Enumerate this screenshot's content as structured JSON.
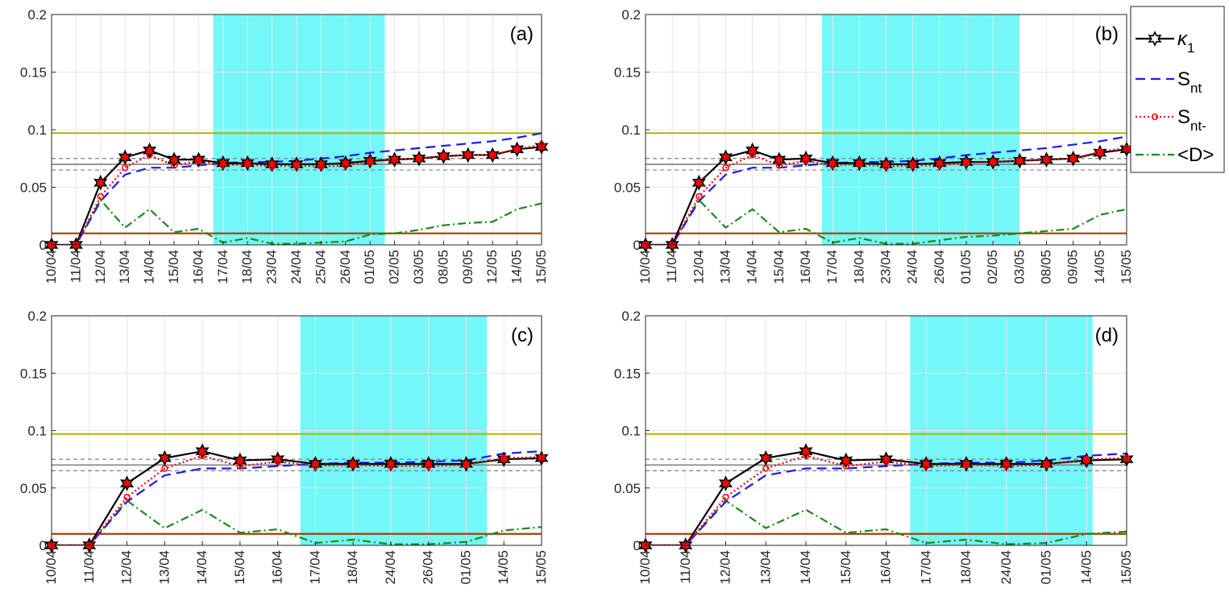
{
  "colors": {
    "kappa": "#000000",
    "kappa_marker_fill": "#ff0000",
    "S_nt": "#1a1aff",
    "S_nt_minus": "#ff0000",
    "D": "#1a8a1a",
    "shade": "#00f0f0",
    "yellow_line": "#b4b400",
    "brown_line": "#a0410a",
    "gray_band": "#7f7f7f",
    "grid": "#e6e6e6",
    "axis": "#262626"
  },
  "legend": {
    "entries": [
      {
        "key": "kappa",
        "symbol": "κ",
        "sub": "1"
      },
      {
        "key": "S_nt",
        "symbol": "S",
        "sub": "nt"
      },
      {
        "key": "S_nt_minus",
        "symbol": "S",
        "sub": "nt-"
      },
      {
        "key": "D",
        "symbol": "<D>",
        "sub": ""
      }
    ]
  },
  "chart_data": [
    {
      "type": "line",
      "panel": "(a)",
      "categories": [
        "10/04",
        "11/04",
        "12/04",
        "13/04",
        "14/04",
        "15/04",
        "16/04",
        "17/04",
        "18/04",
        "23/04",
        "24/04",
        "25/04",
        "26/04",
        "01/05",
        "02/05",
        "03/05",
        "08/05",
        "09/05",
        "12/05",
        "14/05",
        "15/05"
      ],
      "ylim": [
        0,
        0.2
      ],
      "yticks": [
        0,
        0.05,
        0.1,
        0.15,
        0.2
      ],
      "yticklabels": [
        "0",
        "0.05",
        "0.1",
        "0.15",
        "0.2"
      ],
      "shade_x": [
        6.6,
        13.6
      ],
      "hlines": {
        "yellow": 0.097,
        "brown": 0.01,
        "gray_mid": 0.07,
        "gray_dashed": [
          0.075,
          0.065
        ]
      },
      "series": [
        {
          "key": "kappa",
          "values": [
            0,
            0,
            0.054,
            0.076,
            0.082,
            0.074,
            0.074,
            0.071,
            0.071,
            0.07,
            0.07,
            0.07,
            0.071,
            0.073,
            0.074,
            0.075,
            0.077,
            0.078,
            0.078,
            0.083,
            0.085
          ]
        },
        {
          "key": "S_nt",
          "values": [
            0,
            0,
            0.038,
            0.061,
            0.067,
            0.067,
            0.069,
            0.071,
            0.072,
            0.072,
            0.073,
            0.075,
            0.077,
            0.08,
            0.082,
            0.084,
            0.086,
            0.088,
            0.09,
            0.093,
            0.097
          ]
        },
        {
          "key": "S_nt_minus",
          "values": [
            0,
            0,
            0.042,
            0.067,
            0.078,
            0.069,
            0.073,
            0.069,
            0.07,
            0.068,
            0.069,
            0.068,
            0.069,
            0.072,
            0.074,
            0.075,
            0.077,
            0.078,
            0.078,
            0.083,
            0.087
          ]
        },
        {
          "key": "D",
          "values": [
            0,
            0,
            0.039,
            0.015,
            0.031,
            0.011,
            0.014,
            0.002,
            0.006,
            0.001,
            0.001,
            0.002,
            0.003,
            0.009,
            0.01,
            0.013,
            0.017,
            0.019,
            0.02,
            0.031,
            0.036
          ]
        }
      ]
    },
    {
      "type": "line",
      "panel": "(b)",
      "categories": [
        "10/04",
        "11/04",
        "12/04",
        "13/04",
        "14/04",
        "15/04",
        "16/04",
        "17/04",
        "18/04",
        "23/04",
        "24/04",
        "26/04",
        "01/05",
        "02/05",
        "03/05",
        "08/05",
        "09/05",
        "14/05",
        "15/05"
      ],
      "ylim": [
        0,
        0.2
      ],
      "yticks": [
        0,
        0.05,
        0.1,
        0.15,
        0.2
      ],
      "yticklabels": [
        "0",
        "0.05",
        "0.1",
        "0.15",
        "0.2"
      ],
      "shade_x": [
        6.6,
        14.0
      ],
      "hlines": {
        "yellow": 0.097,
        "brown": 0.01,
        "gray_mid": 0.07,
        "gray_dashed": [
          0.075,
          0.065
        ]
      },
      "series": [
        {
          "key": "kappa",
          "values": [
            0,
            0,
            0.054,
            0.076,
            0.082,
            0.074,
            0.075,
            0.071,
            0.071,
            0.07,
            0.07,
            0.071,
            0.072,
            0.072,
            0.073,
            0.074,
            0.075,
            0.08,
            0.083
          ]
        },
        {
          "key": "S_nt",
          "values": [
            0,
            0,
            0.038,
            0.061,
            0.067,
            0.067,
            0.069,
            0.071,
            0.072,
            0.072,
            0.073,
            0.075,
            0.078,
            0.08,
            0.082,
            0.084,
            0.087,
            0.09,
            0.094
          ]
        },
        {
          "key": "S_nt_minus",
          "values": [
            0,
            0,
            0.042,
            0.067,
            0.078,
            0.069,
            0.073,
            0.069,
            0.07,
            0.068,
            0.069,
            0.069,
            0.071,
            0.072,
            0.073,
            0.074,
            0.075,
            0.081,
            0.084
          ]
        },
        {
          "key": "D",
          "values": [
            0,
            0,
            0.039,
            0.015,
            0.031,
            0.011,
            0.014,
            0.002,
            0.006,
            0.001,
            0.001,
            0.004,
            0.007,
            0.008,
            0.01,
            0.012,
            0.014,
            0.026,
            0.031
          ]
        }
      ]
    },
    {
      "type": "line",
      "panel": "(c)",
      "categories": [
        "10/04",
        "11/04",
        "12/04",
        "13/04",
        "14/04",
        "15/04",
        "16/04",
        "17/04",
        "18/04",
        "24/04",
        "26/04",
        "01/05",
        "14/05",
        "15/05"
      ],
      "ylim": [
        0,
        0.2
      ],
      "yticks": [
        0,
        0.05,
        0.1,
        0.15,
        0.2
      ],
      "yticklabels": [
        "0",
        "0.05",
        "0.1",
        "0.15",
        "0.2"
      ],
      "shade_x": [
        6.6,
        11.55
      ],
      "hlines": {
        "yellow": 0.097,
        "brown": 0.01,
        "gray_mid": 0.07,
        "gray_dashed": [
          0.075,
          0.065
        ]
      },
      "series": [
        {
          "key": "kappa",
          "values": [
            0,
            0,
            0.054,
            0.076,
            0.082,
            0.074,
            0.075,
            0.071,
            0.071,
            0.071,
            0.071,
            0.071,
            0.075,
            0.076
          ]
        },
        {
          "key": "S_nt",
          "values": [
            0,
            0,
            0.038,
            0.061,
            0.067,
            0.067,
            0.069,
            0.071,
            0.072,
            0.072,
            0.073,
            0.074,
            0.08,
            0.082
          ]
        },
        {
          "key": "S_nt_minus",
          "values": [
            0,
            0,
            0.042,
            0.067,
            0.078,
            0.069,
            0.073,
            0.069,
            0.07,
            0.069,
            0.069,
            0.07,
            0.076,
            0.077
          ]
        },
        {
          "key": "D",
          "values": [
            0,
            0,
            0.039,
            0.015,
            0.031,
            0.011,
            0.014,
            0.002,
            0.005,
            0.001,
            0.001,
            0.003,
            0.013,
            0.016
          ]
        }
      ]
    },
    {
      "type": "line",
      "panel": "(d)",
      "categories": [
        "10/04",
        "11/04",
        "12/04",
        "13/04",
        "14/04",
        "15/04",
        "16/04",
        "17/04",
        "18/04",
        "24/04",
        "01/05",
        "14/05",
        "15/05"
      ],
      "ylim": [
        0,
        0.2
      ],
      "yticks": [
        0,
        0.05,
        0.1,
        0.15,
        0.2
      ],
      "yticklabels": [
        "0",
        "0.05",
        "0.1",
        "0.15",
        "0.2"
      ],
      "shade_x": [
        6.6,
        11.15
      ],
      "hlines": {
        "yellow": 0.097,
        "brown": 0.01,
        "gray_mid": 0.07,
        "gray_dashed": [
          0.075,
          0.065
        ]
      },
      "series": [
        {
          "key": "kappa",
          "values": [
            0,
            0,
            0.054,
            0.076,
            0.082,
            0.074,
            0.075,
            0.071,
            0.071,
            0.071,
            0.071,
            0.074,
            0.075
          ]
        },
        {
          "key": "S_nt",
          "values": [
            0,
            0,
            0.038,
            0.061,
            0.067,
            0.067,
            0.069,
            0.071,
            0.072,
            0.072,
            0.074,
            0.078,
            0.08
          ]
        },
        {
          "key": "S_nt_minus",
          "values": [
            0,
            0,
            0.042,
            0.067,
            0.078,
            0.069,
            0.073,
            0.069,
            0.07,
            0.069,
            0.07,
            0.075,
            0.076
          ]
        },
        {
          "key": "D",
          "values": [
            0,
            0,
            0.039,
            0.015,
            0.031,
            0.011,
            0.014,
            0.002,
            0.005,
            0.001,
            0.002,
            0.01,
            0.012
          ]
        }
      ]
    }
  ]
}
